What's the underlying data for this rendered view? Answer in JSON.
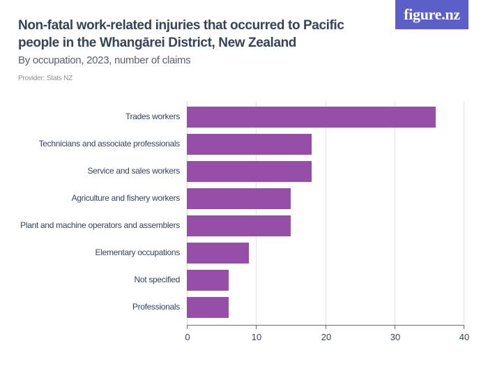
{
  "header": {
    "title": "Non-fatal work-related injuries that occurred to Pacific people in the Whangārei District, New Zealand",
    "subtitle": "By occupation, 2023, number of claims",
    "provider": "Provider: Stats NZ",
    "logo": "figure.nz"
  },
  "colors": {
    "bar": "#974ea9",
    "logo_bg": "#5b5fc7",
    "title": "#36435a"
  },
  "chart_data": {
    "type": "bar",
    "orientation": "horizontal",
    "title": "Non-fatal work-related injuries that occurred to Pacific people in the Whangārei District, New Zealand",
    "subtitle": "By occupation, 2023, number of claims",
    "xlabel": "",
    "ylabel": "",
    "categories": [
      "Trades workers",
      "Technicians and associate professionals",
      "Service and sales workers",
      "Agriculture and fishery workers",
      "Plant and machine operators and assemblers",
      "Elementary occupations",
      "Not specified",
      "Professionals"
    ],
    "values": [
      36,
      18,
      18,
      15,
      15,
      9,
      6,
      6
    ],
    "xlim": [
      0,
      40
    ],
    "xticks": [
      "0",
      "10",
      "20",
      "30",
      "40"
    ],
    "grid": true,
    "legend": "none"
  }
}
